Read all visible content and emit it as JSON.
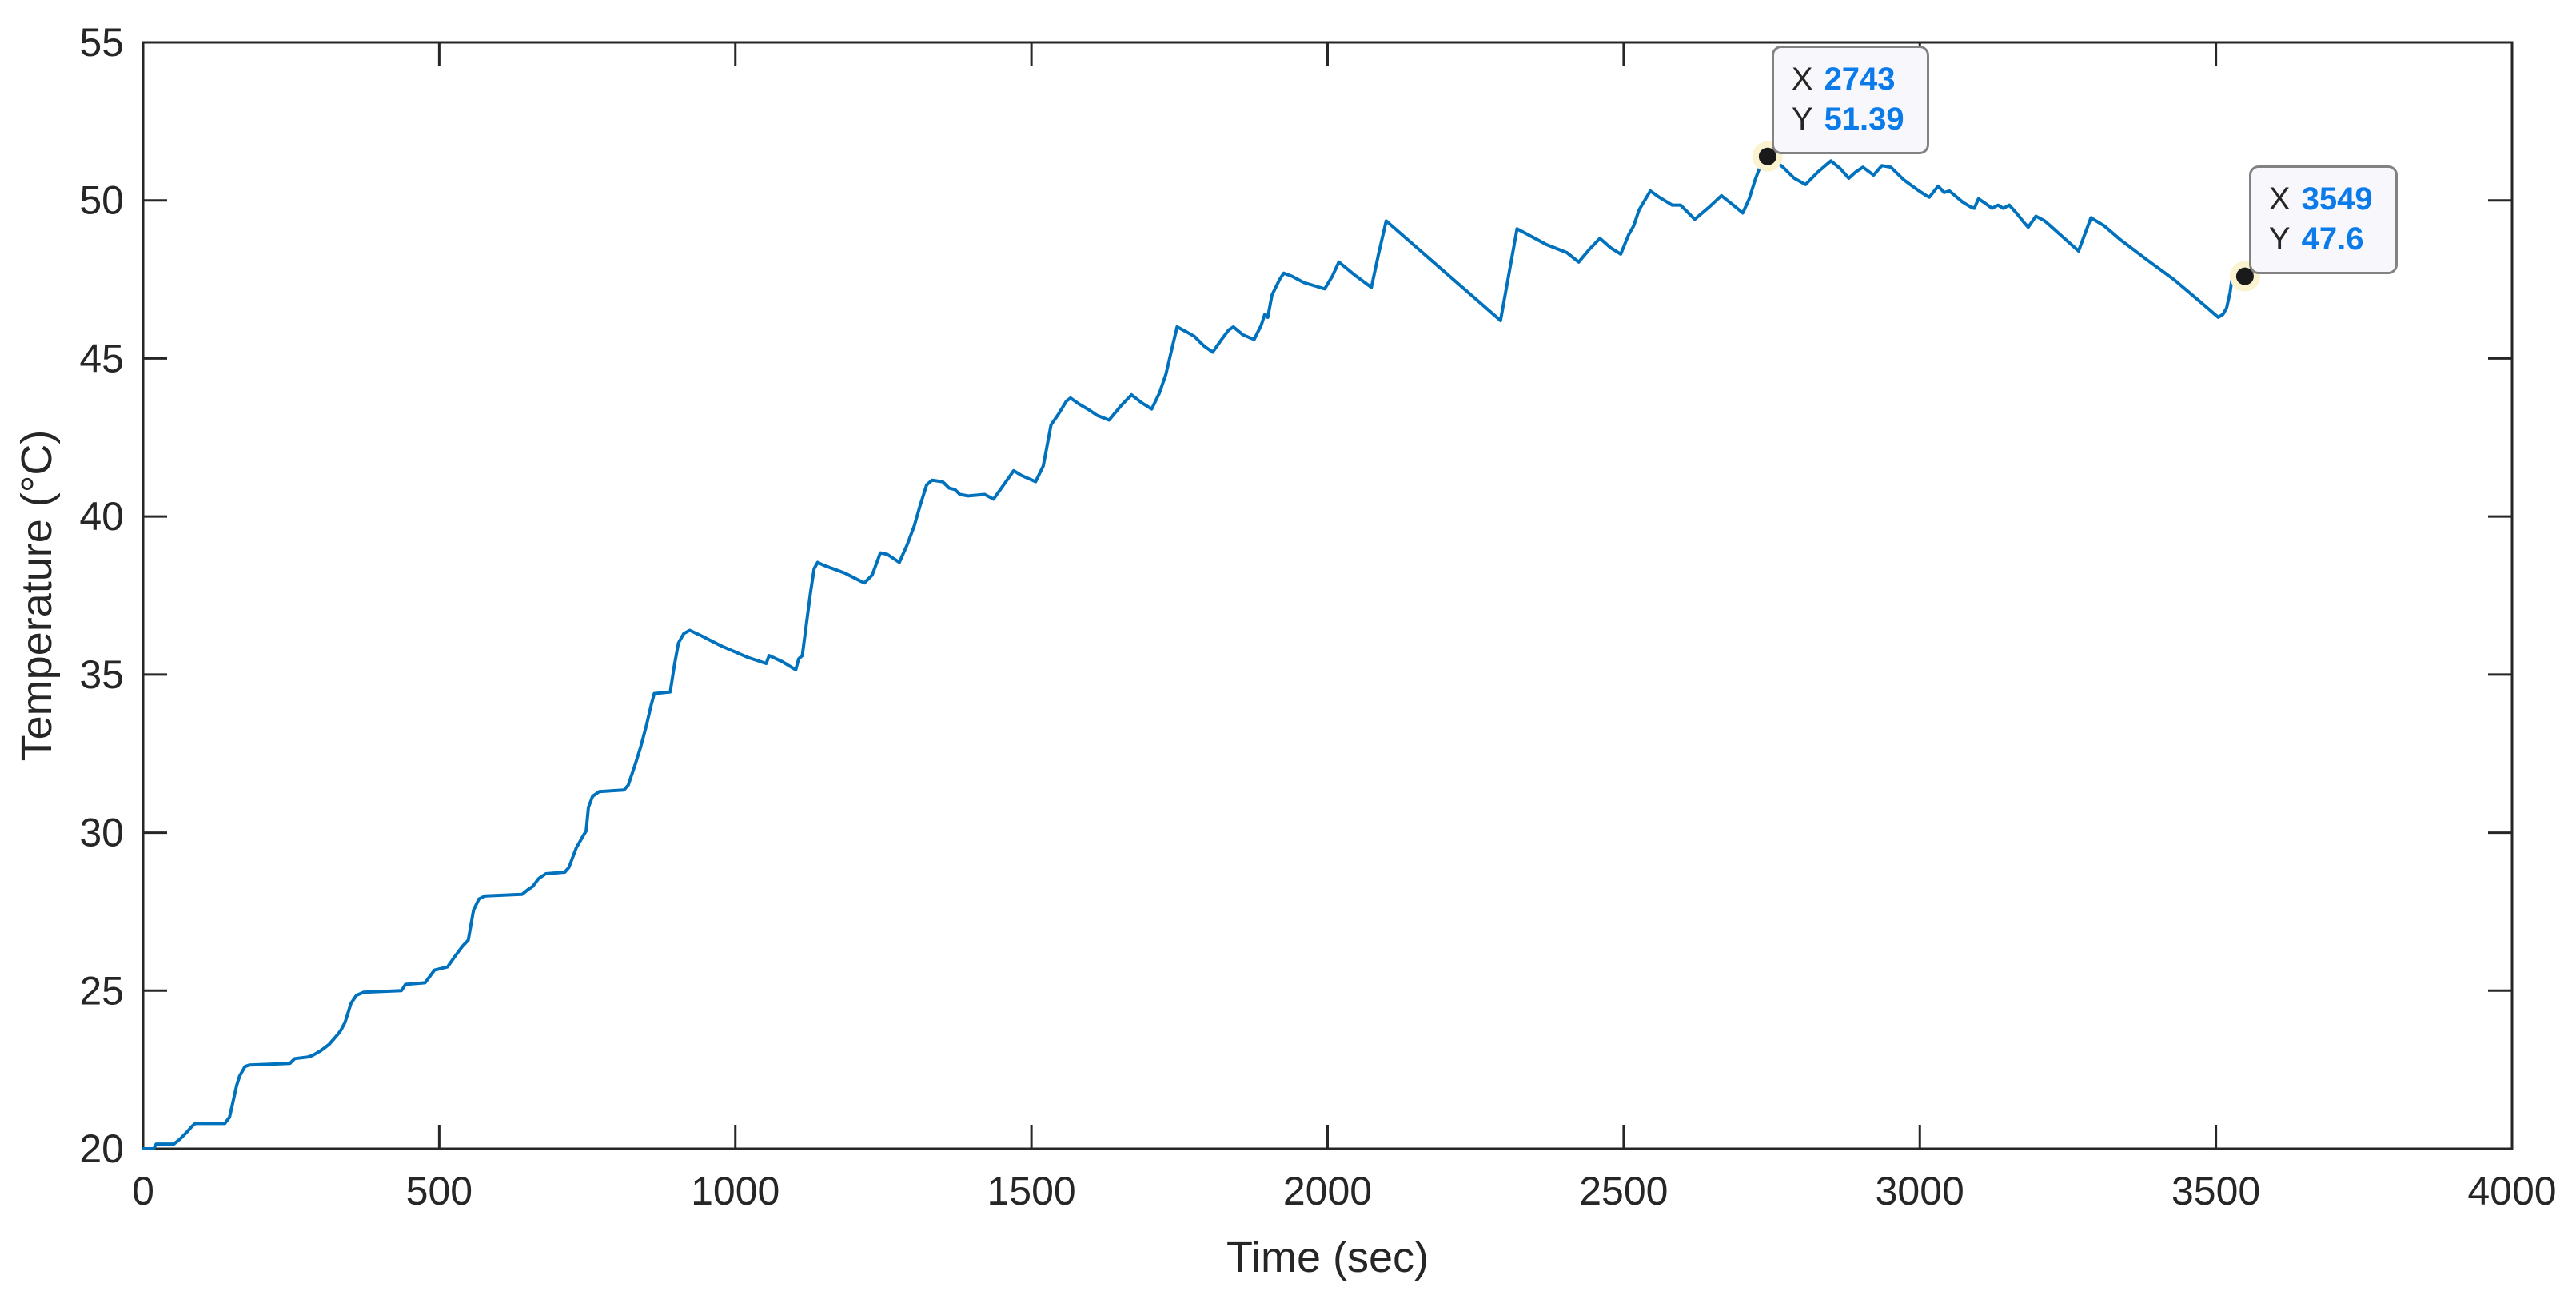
{
  "figure": {
    "background": "#ffffff"
  },
  "chart_data": {
    "type": "line",
    "title": "",
    "xlabel": "Time (sec)",
    "ylabel": "Temperature (°C)",
    "xlim": [
      0,
      4000
    ],
    "ylim": [
      20,
      55
    ],
    "x_ticks": [
      0,
      500,
      1000,
      1500,
      2000,
      2500,
      3000,
      3500,
      4000
    ],
    "y_ticks": [
      20,
      25,
      30,
      35,
      40,
      45,
      50,
      55
    ],
    "grid": false,
    "legend": "none",
    "axes_color": "#262626",
    "series": [
      {
        "name": "temperature",
        "color": "#0072BD",
        "points": [
          [
            0,
            20
          ],
          [
            18,
            20
          ],
          [
            22,
            20.15
          ],
          [
            52,
            20.15
          ],
          [
            62,
            20.3
          ],
          [
            75,
            20.55
          ],
          [
            82,
            20.7
          ],
          [
            88,
            20.8
          ],
          [
            138,
            20.8
          ],
          [
            146,
            21
          ],
          [
            152,
            21.5
          ],
          [
            158,
            22
          ],
          [
            163,
            22.3
          ],
          [
            172,
            22.6
          ],
          [
            180,
            22.65
          ],
          [
            248,
            22.7
          ],
          [
            256,
            22.85
          ],
          [
            278,
            22.9
          ],
          [
            286,
            22.95
          ],
          [
            300,
            23.1
          ],
          [
            314,
            23.3
          ],
          [
            328,
            23.6
          ],
          [
            334,
            23.75
          ],
          [
            341,
            24
          ],
          [
            346,
            24.3
          ],
          [
            351,
            24.6
          ],
          [
            360,
            24.85
          ],
          [
            372,
            24.95
          ],
          [
            436,
            25
          ],
          [
            443,
            25.2
          ],
          [
            476,
            25.25
          ],
          [
            484,
            25.45
          ],
          [
            492,
            25.65
          ],
          [
            514,
            25.75
          ],
          [
            527,
            26.1
          ],
          [
            539,
            26.4
          ],
          [
            549,
            26.6
          ],
          [
            558,
            27.55
          ],
          [
            567,
            27.9
          ],
          [
            578,
            28
          ],
          [
            640,
            28.05
          ],
          [
            650,
            28.2
          ],
          [
            658,
            28.3
          ],
          [
            668,
            28.55
          ],
          [
            680,
            28.7
          ],
          [
            712,
            28.75
          ],
          [
            719,
            28.9
          ],
          [
            731,
            29.5
          ],
          [
            743,
            29.9
          ],
          [
            748,
            30.05
          ],
          [
            752,
            30.8
          ],
          [
            759,
            31.15
          ],
          [
            770,
            31.3
          ],
          [
            812,
            31.35
          ],
          [
            819,
            31.5
          ],
          [
            830,
            32.1
          ],
          [
            840,
            32.7
          ],
          [
            850,
            33.4
          ],
          [
            858,
            34.05
          ],
          [
            863,
            34.4
          ],
          [
            890,
            34.45
          ],
          [
            897,
            35.3
          ],
          [
            904,
            36
          ],
          [
            913,
            36.3
          ],
          [
            923,
            36.4
          ],
          [
            940,
            36.25
          ],
          [
            977,
            35.9
          ],
          [
            1020,
            35.55
          ],
          [
            1052,
            35.35
          ],
          [
            1057,
            35.6
          ],
          [
            1080,
            35.4
          ],
          [
            1102,
            35.15
          ],
          [
            1107,
            35.5
          ],
          [
            1113,
            35.6
          ],
          [
            1120,
            36.6
          ],
          [
            1127,
            37.6
          ],
          [
            1133,
            38.35
          ],
          [
            1139,
            38.55
          ],
          [
            1150,
            38.45
          ],
          [
            1172,
            38.3
          ],
          [
            1186,
            38.2
          ],
          [
            1212,
            37.95
          ],
          [
            1218,
            37.9
          ],
          [
            1231,
            38.15
          ],
          [
            1245,
            38.85
          ],
          [
            1257,
            38.8
          ],
          [
            1277,
            38.55
          ],
          [
            1290,
            39.1
          ],
          [
            1302,
            39.7
          ],
          [
            1312,
            40.35
          ],
          [
            1323,
            41
          ],
          [
            1332,
            41.15
          ],
          [
            1350,
            41.1
          ],
          [
            1361,
            40.9
          ],
          [
            1371,
            40.85
          ],
          [
            1379,
            40.7
          ],
          [
            1393,
            40.65
          ],
          [
            1421,
            40.7
          ],
          [
            1436,
            40.55
          ],
          [
            1453,
            41
          ],
          [
            1470,
            41.45
          ],
          [
            1483,
            41.3
          ],
          [
            1507,
            41.1
          ],
          [
            1520,
            41.6
          ],
          [
            1533,
            42.9
          ],
          [
            1546,
            43.25
          ],
          [
            1559,
            43.65
          ],
          [
            1566,
            43.75
          ],
          [
            1581,
            43.55
          ],
          [
            1595,
            43.4
          ],
          [
            1611,
            43.2
          ],
          [
            1631,
            43.05
          ],
          [
            1651,
            43.5
          ],
          [
            1669,
            43.85
          ],
          [
            1686,
            43.6
          ],
          [
            1703,
            43.4
          ],
          [
            1716,
            43.9
          ],
          [
            1727,
            44.5
          ],
          [
            1737,
            45.3
          ],
          [
            1746,
            46
          ],
          [
            1761,
            45.85
          ],
          [
            1775,
            45.7
          ],
          [
            1791,
            45.4
          ],
          [
            1806,
            45.2
          ],
          [
            1821,
            45.6
          ],
          [
            1833,
            45.9
          ],
          [
            1841,
            46
          ],
          [
            1857,
            45.75
          ],
          [
            1876,
            45.6
          ],
          [
            1888,
            46.05
          ],
          [
            1894,
            46.4
          ],
          [
            1899,
            46.3
          ],
          [
            1906,
            47
          ],
          [
            1919,
            47.5
          ],
          [
            1926,
            47.7
          ],
          [
            1940,
            47.6
          ],
          [
            1960,
            47.4
          ],
          [
            1978,
            47.3
          ],
          [
            1995,
            47.2
          ],
          [
            2008,
            47.6
          ],
          [
            2019,
            48.05
          ],
          [
            2045,
            47.65
          ],
          [
            2074,
            47.25
          ],
          [
            2086,
            48.3
          ],
          [
            2099,
            49.35
          ],
          [
            2292,
            46.2
          ],
          [
            2320,
            49.1
          ],
          [
            2345,
            48.85
          ],
          [
            2370,
            48.6
          ],
          [
            2404,
            48.35
          ],
          [
            2424,
            48.05
          ],
          [
            2442,
            48.45
          ],
          [
            2460,
            48.8
          ],
          [
            2478,
            48.5
          ],
          [
            2495,
            48.3
          ],
          [
            2508,
            48.9
          ],
          [
            2517,
            49.2
          ],
          [
            2526,
            49.7
          ],
          [
            2545,
            50.3
          ],
          [
            2560,
            50.1
          ],
          [
            2582,
            49.85
          ],
          [
            2596,
            49.85
          ],
          [
            2620,
            49.4
          ],
          [
            2645,
            49.8
          ],
          [
            2665,
            50.15
          ],
          [
            2685,
            49.85
          ],
          [
            2701,
            49.6
          ],
          [
            2712,
            50.05
          ],
          [
            2722,
            50.65
          ],
          [
            2730,
            51.05
          ],
          [
            2736,
            51.25
          ],
          [
            2742,
            51.39
          ],
          [
            2756,
            51.25
          ],
          [
            2769,
            51.05
          ],
          [
            2788,
            50.7
          ],
          [
            2807,
            50.5
          ],
          [
            2828,
            50.9
          ],
          [
            2850,
            51.25
          ],
          [
            2866,
            51
          ],
          [
            2880,
            50.7
          ],
          [
            2892,
            50.9
          ],
          [
            2904,
            51.05
          ],
          [
            2922,
            50.8
          ],
          [
            2936,
            51.1
          ],
          [
            2951,
            51.05
          ],
          [
            2973,
            50.65
          ],
          [
            2995,
            50.35
          ],
          [
            3011,
            50.15
          ],
          [
            3016,
            50.1
          ],
          [
            3031,
            50.45
          ],
          [
            3041,
            50.25
          ],
          [
            3050,
            50.3
          ],
          [
            3072,
            49.95
          ],
          [
            3085,
            49.8
          ],
          [
            3092,
            49.75
          ],
          [
            3099,
            50.05
          ],
          [
            3111,
            49.9
          ],
          [
            3122,
            49.75
          ],
          [
            3132,
            49.85
          ],
          [
            3141,
            49.75
          ],
          [
            3151,
            49.85
          ],
          [
            3163,
            49.6
          ],
          [
            3176,
            49.3
          ],
          [
            3183,
            49.15
          ],
          [
            3196,
            49.5
          ],
          [
            3211,
            49.35
          ],
          [
            3226,
            49.1
          ],
          [
            3247,
            48.75
          ],
          [
            3268,
            48.4
          ],
          [
            3289,
            49.45
          ],
          [
            3311,
            49.2
          ],
          [
            3339,
            48.75
          ],
          [
            3385,
            48.1
          ],
          [
            3429,
            47.5
          ],
          [
            3470,
            46.85
          ],
          [
            3504,
            46.3
          ],
          [
            3512,
            46.4
          ],
          [
            3518,
            46.6
          ],
          [
            3524,
            47.1
          ],
          [
            3528,
            47.65
          ],
          [
            3532,
            47.8
          ],
          [
            3541,
            47.65
          ],
          [
            3549,
            47.6
          ]
        ]
      }
    ],
    "datatips": [
      {
        "x_label": "X",
        "y_label": "Y",
        "x_value": "2743",
        "y_value": "51.39",
        "point": [
          2743,
          51.39
        ],
        "value_color": "#0b7bea",
        "marker_color": "#1a1a1a",
        "halo_color": "#fbf3cf"
      },
      {
        "x_label": "X",
        "y_label": "Y",
        "x_value": "3549",
        "y_value": "47.6",
        "point": [
          3549,
          47.6
        ],
        "value_color": "#0b7bea",
        "marker_color": "#1a1a1a",
        "halo_color": "#fbf3cf"
      }
    ]
  }
}
